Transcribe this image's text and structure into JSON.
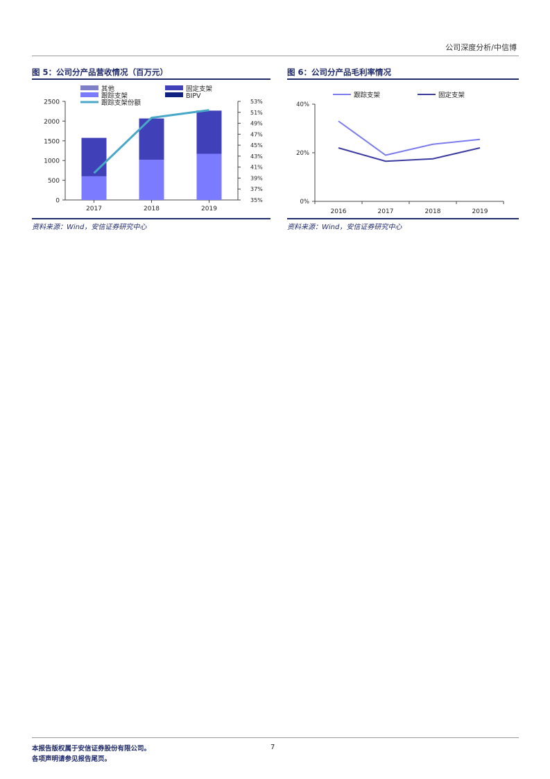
{
  "header": {
    "right_text": "公司深度分析/中信博"
  },
  "figures": [
    {
      "title": "图 5：公司分产品营收情况（百万元）",
      "source": "资料来源：Wind，安信证券研究中心"
    },
    {
      "title": "图 6：公司分产品毛利率情况",
      "source": "资料来源：Wind，安信证券研究中心"
    }
  ],
  "chart_data": [
    {
      "type": "bar",
      "stacked": true,
      "categories": [
        "2017",
        "2018",
        "2019"
      ],
      "y_ticks": [
        "0",
        "500",
        "1000",
        "1500",
        "2000",
        "2500"
      ],
      "ylim": [
        0,
        2500
      ],
      "y2_ticks": [
        "35%",
        "37%",
        "39%",
        "41%",
        "43%",
        "45%",
        "47%",
        "49%",
        "51%",
        "53%"
      ],
      "y2lim": [
        35,
        53
      ],
      "series": [
        {
          "name": "跟踪支架",
          "type": "bar",
          "color": "#7b7bff",
          "values": [
            600,
            1020,
            1170
          ]
        },
        {
          "name": "固定支架",
          "type": "bar",
          "color": "#4040b8",
          "values": [
            970,
            1040,
            1090
          ]
        },
        {
          "name": "其他",
          "type": "bar",
          "color": "#8080c8",
          "values": [
            10,
            10,
            10
          ]
        },
        {
          "name": "BIPV",
          "type": "bar",
          "color": "#102080",
          "values": [
            0,
            0,
            0
          ]
        },
        {
          "name": "跟踪支架份额",
          "type": "line",
          "axis": "right",
          "color": "#49a8c8",
          "values": [
            39.9,
            50.0,
            51.4
          ]
        }
      ],
      "legend": [
        "其他",
        "固定支架",
        "跟踪支架",
        "BIPV",
        "跟踪支架份额"
      ]
    },
    {
      "type": "line",
      "categories": [
        "2016",
        "2017",
        "2018",
        "2019"
      ],
      "y_ticks": [
        "0%",
        "20%",
        "40%"
      ],
      "ylim": [
        0,
        40
      ],
      "series": [
        {
          "name": "跟踪支架",
          "color": "#7b7bee",
          "values": [
            33,
            19,
            23.5,
            25.5
          ]
        },
        {
          "name": "固定支架",
          "color": "#3a3aa0",
          "values": [
            22,
            16.5,
            17.5,
            22
          ]
        }
      ]
    }
  ],
  "footer": {
    "line1": "本报告版权属于安信证券股份有限公司。",
    "line2": "各项声明请参见报告尾页。",
    "page": "7"
  }
}
